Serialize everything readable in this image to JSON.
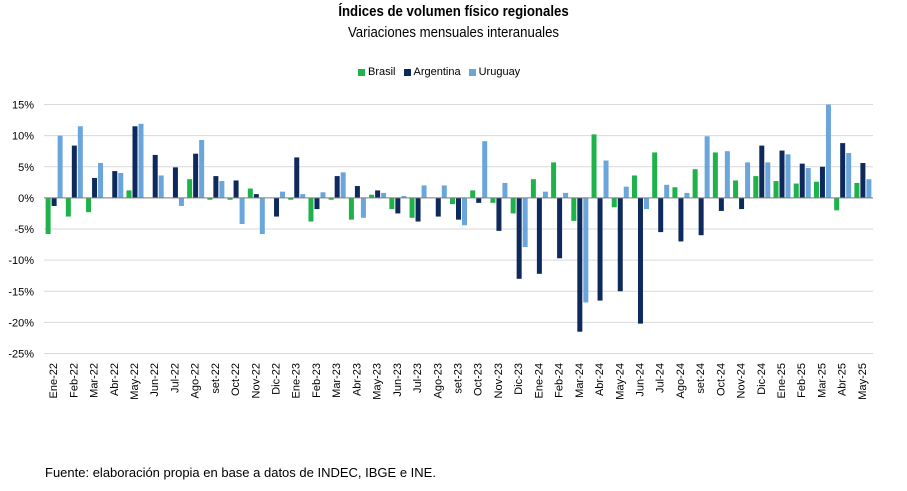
{
  "chart_data": {
    "type": "bar",
    "title": "Índices de volumen físico regionales",
    "subtitle": "Variaciones mensuales interanuales",
    "source": "Fuente: elaboración propia en base a datos de INDEC, IBGE e INE.",
    "ylim": [
      -25,
      15
    ],
    "yticks": [
      15,
      10,
      5,
      0,
      -5,
      -10,
      -15,
      -20,
      -25
    ],
    "ytick_labels": [
      "15%",
      "10%",
      "5%",
      "0%",
      "-5%",
      "-10%",
      "-15%",
      "-20%",
      "-25%"
    ],
    "grid": true,
    "legend_position": "top-center",
    "categories": [
      "Ene-22",
      "Feb-22",
      "Mar-22",
      "Abr-22",
      "May-22",
      "Jun-22",
      "Jul-22",
      "Ago-22",
      "set-22",
      "Oct-22",
      "Nov-22",
      "Dic-22",
      "Ene-23",
      "Feb-23",
      "Mar-23",
      "Abr-23",
      "May-23",
      "Jun-23",
      "Jul-23",
      "Ago-23",
      "set-23",
      "Oct-23",
      "Nov-23",
      "Dic-23",
      "Ene-24",
      "Feb-24",
      "Mar-24",
      "Abr-24",
      "May-24",
      "Jun-24",
      "Jul-24",
      "Ago-24",
      "set-24",
      "Oct-24",
      "Nov-24",
      "Dic-24",
      "Ene-25",
      "Feb-25",
      "Mar-25",
      "Abr-25",
      "May-25"
    ],
    "series": [
      {
        "name": "Brasil",
        "color": "#1eb24a",
        "values": [
          -5.8,
          -3.0,
          -2.3,
          0.0,
          1.2,
          0.0,
          0.0,
          3.0,
          -0.3,
          -0.3,
          1.5,
          0.0,
          -0.3,
          -3.8,
          -0.3,
          -3.5,
          0.5,
          -1.8,
          -3.2,
          0.0,
          -1.0,
          1.2,
          -0.8,
          -2.5,
          3.0,
          5.7,
          -3.7,
          10.2,
          -1.5,
          3.6,
          7.3,
          1.7,
          4.6,
          7.3,
          2.8,
          3.5,
          2.7,
          2.3,
          2.6,
          -2.0,
          2.4
        ]
      },
      {
        "name": "Argentina",
        "color": "#0e2a5c",
        "values": [
          -1.3,
          8.4,
          3.2,
          4.3,
          11.5,
          6.9,
          4.9,
          7.1,
          3.5,
          2.8,
          0.6,
          -3.0,
          6.5,
          -1.8,
          3.5,
          1.9,
          1.2,
          -2.5,
          -3.8,
          -3.0,
          -3.5,
          -0.8,
          -5.3,
          -13.0,
          -12.2,
          -9.7,
          -21.5,
          -16.5,
          -15.0,
          -20.2,
          -5.5,
          -7.0,
          -6.0,
          -2.1,
          -1.8,
          8.4,
          7.6,
          5.5,
          5.0,
          8.8,
          5.6
        ]
      },
      {
        "name": "Uruguay",
        "color": "#6aa6dc",
        "values": [
          10.0,
          11.5,
          5.6,
          4.0,
          11.9,
          3.6,
          -1.3,
          9.3,
          2.7,
          -4.2,
          -5.8,
          1.0,
          0.6,
          0.9,
          4.1,
          -3.2,
          0.8,
          0.3,
          2.0,
          2.0,
          -4.4,
          9.1,
          2.4,
          -7.9,
          1.0,
          0.8,
          -16.8,
          6.0,
          1.8,
          -1.8,
          2.1,
          0.8,
          9.9,
          7.5,
          5.7,
          5.7,
          7.0,
          4.8,
          15.0,
          7.2,
          3.0
        ]
      }
    ]
  }
}
